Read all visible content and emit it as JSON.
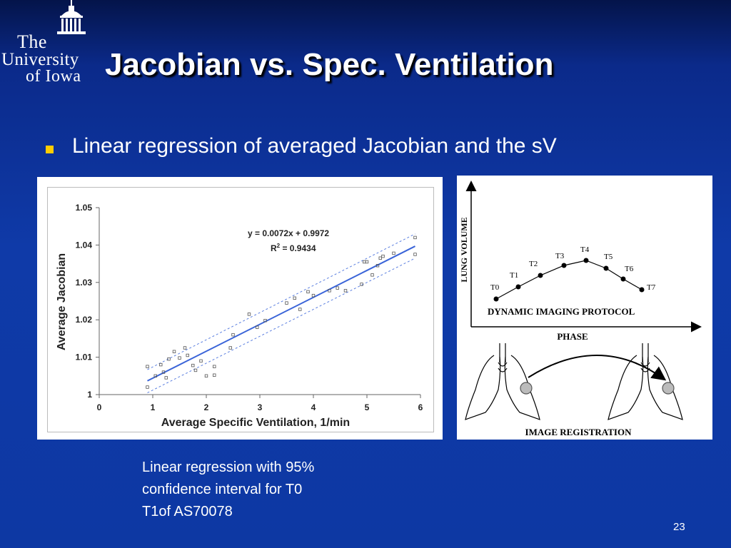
{
  "slide": {
    "title": "Jacobian vs. Spec. Ventilation",
    "bullet": "Linear regression of averaged Jacobian and the sV",
    "caption_lines": [
      "Linear regression with 95%",
      "confidence interval for T0",
      "T1of AS70078"
    ],
    "page_number": "23"
  },
  "logo": {
    "line1": "The",
    "line2": "University",
    "line3": "of Iowa"
  },
  "chart_data": {
    "type": "scatter",
    "xlabel": "Average Specific Ventilation, 1/min",
    "ylabel": "Average Jacobian",
    "xlim": [
      0,
      6
    ],
    "ylim": [
      1,
      1.05
    ],
    "xticks": [
      "0",
      "1",
      "2",
      "3",
      "4",
      "5",
      "6"
    ],
    "yticks": [
      "1",
      "1.01",
      "1.02",
      "1.03",
      "1.04",
      "1.05"
    ],
    "equation": "y = 0.0072x + 0.9972",
    "r2_label": "R",
    "r2_sup": "2",
    "r2_value": " = 0.9434",
    "regression": {
      "slope": 0.0072,
      "intercept": 0.9972
    },
    "points": [
      [
        0.9,
        1.0075
      ],
      [
        0.9,
        1.002
      ],
      [
        1.05,
        1.005
      ],
      [
        1.15,
        1.008
      ],
      [
        1.2,
        1.006
      ],
      [
        1.25,
        1.0045
      ],
      [
        1.3,
        1.0095
      ],
      [
        1.4,
        1.0115
      ],
      [
        1.5,
        1.0098
      ],
      [
        1.6,
        1.0125
      ],
      [
        1.65,
        1.0105
      ],
      [
        1.75,
        1.0078
      ],
      [
        1.8,
        1.0065
      ],
      [
        1.9,
        1.009
      ],
      [
        2.0,
        1.005
      ],
      [
        2.15,
        1.0075
      ],
      [
        2.15,
        1.0052
      ],
      [
        2.45,
        1.0125
      ],
      [
        2.5,
        1.016
      ],
      [
        2.8,
        1.0215
      ],
      [
        2.95,
        1.018
      ],
      [
        3.1,
        1.0198
      ],
      [
        3.5,
        1.0245
      ],
      [
        3.65,
        1.0258
      ],
      [
        3.75,
        1.0228
      ],
      [
        3.9,
        1.0275
      ],
      [
        4.0,
        1.0265
      ],
      [
        4.3,
        1.0278
      ],
      [
        4.45,
        1.0285
      ],
      [
        4.6,
        1.0278
      ],
      [
        4.9,
        1.0295
      ],
      [
        4.95,
        1.0355
      ],
      [
        5.0,
        1.0355
      ],
      [
        5.1,
        1.032
      ],
      [
        5.2,
        1.0345
      ],
      [
        5.25,
        1.0365
      ],
      [
        5.3,
        1.037
      ],
      [
        5.5,
        1.0378
      ],
      [
        5.9,
        1.042
      ],
      [
        5.9,
        1.0375
      ]
    ]
  },
  "diagram": {
    "y_axis_label": "LUNG VOLUME",
    "x_axis_label": "PHASE",
    "protocol_label": "DYNAMIC IMAGING PROTOCOL",
    "registration_label": "IMAGE REGISTRATION",
    "time_points": [
      "T0",
      "T1",
      "T2",
      "T3",
      "T4",
      "T5",
      "T6",
      "T7"
    ]
  }
}
